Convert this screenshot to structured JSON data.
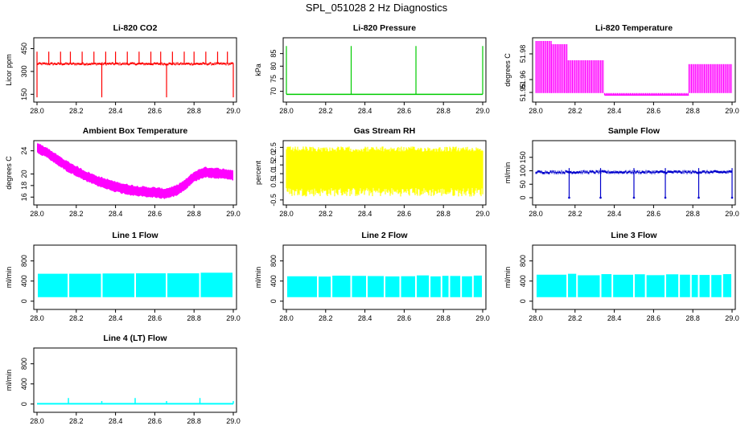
{
  "figure": {
    "title": "SPL_051028  2 Hz Diagnostics"
  },
  "chart_data": [
    {
      "type": "line",
      "title": "Li-820 CO2",
      "xlabel": "",
      "ylabel": "Licor ppm",
      "xlim": [
        28.0,
        29.0
      ],
      "ylim": [
        120,
        500
      ],
      "x_ticks": [
        "28.0",
        "28.2",
        "28.4",
        "28.6",
        "28.8",
        "29.0"
      ],
      "y_ticks": [
        "150",
        "300",
        "450"
      ],
      "color": "#ff0000",
      "series": [
        {
          "baseline": 350,
          "spikes_up": [
            28.0,
            28.06,
            28.12,
            28.17,
            28.23,
            28.29,
            28.35,
            28.4,
            28.46,
            28.52,
            28.58,
            28.63,
            28.69,
            28.75,
            28.8,
            28.86,
            28.92,
            28.97
          ],
          "spike_top": 430,
          "dips": [
            28.0,
            28.33,
            28.66,
            29.0
          ],
          "dip_min": 130
        }
      ]
    },
    {
      "type": "line",
      "title": "Li-820 Pressure",
      "xlabel": "",
      "ylabel": "kPa",
      "xlim": [
        28.0,
        29.0
      ],
      "ylim": [
        67,
        90
      ],
      "x_ticks": [
        "28.0",
        "28.2",
        "28.4",
        "28.6",
        "28.8",
        "29.0"
      ],
      "y_ticks": [
        "70",
        "75",
        "80",
        "85"
      ],
      "color": "#00cc00",
      "series": [
        {
          "baseline": 68.8,
          "spikes": [
            28.0,
            28.33,
            28.66,
            29.0
          ],
          "spike_top": 88
        }
      ]
    },
    {
      "type": "line",
      "title": "Li-820 Temperature",
      "xlabel": "",
      "ylabel": "degrees C",
      "xlim": [
        28.0,
        29.0
      ],
      "ylim": [
        51.945,
        51.99
      ],
      "x_ticks": [
        "28.0",
        "28.2",
        "28.4",
        "28.6",
        "28.8",
        "29.0"
      ],
      "y_ticks": [
        "51.95",
        "51.96",
        "51.98"
      ],
      "color": "#ff00ff",
      "series": [
        {
          "levels": [
            [
              28.0,
              28.08,
              51.99
            ],
            [
              28.08,
              28.16,
              51.9875
            ],
            [
              28.16,
              28.35,
              51.975
            ],
            [
              28.35,
              28.78,
              51.948
            ],
            [
              28.78,
              29.0,
              51.972
            ]
          ],
          "low": 51.948
        }
      ]
    },
    {
      "type": "line",
      "title": "Ambient Box Temperature",
      "xlabel": "",
      "ylabel": "degrees C",
      "xlim": [
        28.0,
        29.0
      ],
      "ylim": [
        15.2,
        25.2
      ],
      "x_ticks": [
        "28.0",
        "28.2",
        "28.4",
        "28.6",
        "28.8",
        "29.0"
      ],
      "y_ticks": [
        "16",
        "18",
        "20",
        "24"
      ],
      "color": "#ff00ff",
      "series": [
        {
          "x": [
            28.0,
            28.05,
            28.1,
            28.15,
            28.2,
            28.25,
            28.3,
            28.35,
            28.4,
            28.45,
            28.5,
            28.55,
            28.6,
            28.65,
            28.7,
            28.75,
            28.8,
            28.85,
            28.9,
            28.95,
            29.0
          ],
          "y": [
            24.5,
            23.7,
            22.5,
            21.4,
            20.5,
            19.6,
            18.9,
            18.3,
            17.8,
            17.4,
            17.1,
            16.9,
            16.8,
            16.6,
            17.0,
            18.0,
            19.5,
            20.3,
            20.2,
            20.0,
            19.8
          ],
          "band": 1.4
        }
      ]
    },
    {
      "type": "area",
      "title": "Gas Stream RH",
      "xlabel": "",
      "ylabel": "percent",
      "xlim": [
        28.0,
        29.0
      ],
      "ylim": [
        -0.6,
        2.7
      ],
      "x_ticks": [
        "28.0",
        "28.2",
        "28.4",
        "28.6",
        "28.8",
        "29.0"
      ],
      "y_ticks": [
        "-0.5",
        "0.5",
        "1.0",
        "1.5",
        "2.0",
        "2.5"
      ],
      "color": "#ffff00",
      "series": [
        {
          "lower": -0.3,
          "upper": 2.55
        }
      ]
    },
    {
      "type": "line",
      "title": "Sample Flow",
      "xlabel": "",
      "ylabel": "ml/min",
      "xlim": [
        28.0,
        29.0
      ],
      "ylim": [
        -15,
        200
      ],
      "x_ticks": [
        "28.0",
        "28.2",
        "28.4",
        "28.6",
        "28.8",
        "29.0"
      ],
      "y_ticks": [
        "0",
        "50",
        "100",
        "150"
      ],
      "color": "#0000cc",
      "series": [
        {
          "baseline": 95,
          "dips": [
            28.17,
            28.33,
            28.5,
            28.66,
            28.83,
            29.0
          ],
          "dip_min": 0
        }
      ]
    },
    {
      "type": "area",
      "title": "Line 1 Flow",
      "xlabel": "",
      "ylabel": "ml/min",
      "xlim": [
        28.0,
        29.0
      ],
      "ylim": [
        -100,
        1050
      ],
      "x_ticks": [
        "28.0",
        "28.2",
        "28.4",
        "28.6",
        "28.8",
        "29.0"
      ],
      "y_ticks": [
        "0",
        "400",
        "800"
      ],
      "color": "#00ffff",
      "series": [
        {
          "lower": 80,
          "upper": 560,
          "gaps": [
            28.16,
            28.33,
            28.5,
            28.66,
            28.83
          ]
        }
      ]
    },
    {
      "type": "area",
      "title": "Line 2 Flow",
      "xlabel": "",
      "ylabel": "ml/min",
      "xlim": [
        28.0,
        29.0
      ],
      "ylim": [
        -100,
        1050
      ],
      "x_ticks": [
        "28.0",
        "28.2",
        "28.4",
        "28.6",
        "28.8",
        "29.0"
      ],
      "y_ticks": [
        "0",
        "400",
        "800"
      ],
      "color": "#00ffff",
      "series": [
        {
          "lower": 80,
          "upper": 500,
          "gaps": [
            28.16,
            28.23,
            28.33,
            28.41,
            28.5,
            28.58,
            28.66,
            28.73,
            28.79,
            28.83,
            28.89,
            28.95
          ]
        }
      ]
    },
    {
      "type": "area",
      "title": "Line 3 Flow",
      "xlabel": "",
      "ylabel": "ml/min",
      "xlim": [
        28.0,
        29.0
      ],
      "ylim": [
        -100,
        1050
      ],
      "x_ticks": [
        "28.0",
        "28.2",
        "28.4",
        "28.6",
        "28.8",
        "29.0"
      ],
      "y_ticks": [
        "0",
        "400",
        "800"
      ],
      "color": "#00ffff",
      "series": [
        {
          "lower": 80,
          "upper": 530,
          "gaps": [
            28.16,
            28.21,
            28.33,
            28.39,
            28.5,
            28.56,
            28.66,
            28.73,
            28.79,
            28.83,
            28.89,
            28.95
          ]
        }
      ]
    },
    {
      "type": "line",
      "title": "Line 4 (LT) Flow",
      "xlabel": "",
      "ylabel": "ml/min",
      "xlim": [
        28.0,
        29.0
      ],
      "ylim": [
        -100,
        1050
      ],
      "x_ticks": [
        "28.0",
        "28.2",
        "28.4",
        "28.6",
        "28.8",
        "29.0"
      ],
      "y_ticks": [
        "0",
        "400",
        "800"
      ],
      "color": "#00ffff",
      "series": [
        {
          "baseline": 5,
          "spikes": [
            28.16,
            28.33,
            28.5,
            28.66,
            28.83,
            29.0
          ],
          "spike_tops": [
            120,
            60,
            120,
            60,
            120,
            60
          ]
        }
      ]
    }
  ]
}
